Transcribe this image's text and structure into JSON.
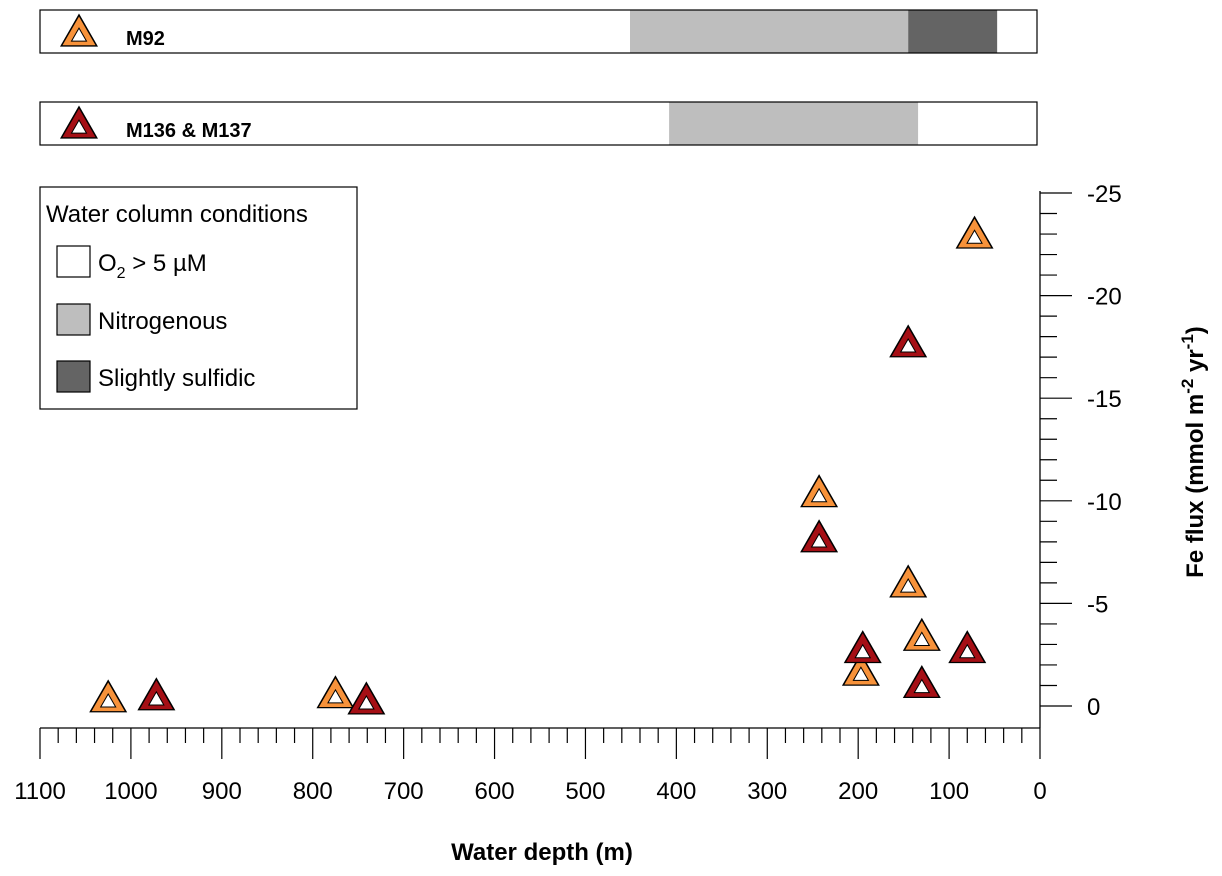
{
  "cruise_bars": [
    {
      "label": "M92",
      "marker_color": "#F7923A",
      "segments": [
        {
          "condition": "O2 > 5 µM",
          "from_depth": 1100,
          "to_depth": 451
        },
        {
          "condition": "Nitrogenous",
          "from_depth": 451,
          "to_depth": 145
        },
        {
          "condition": "Slightly sulfidic",
          "from_depth": 145,
          "to_depth": 47
        },
        {
          "condition": "O2 > 5 µM",
          "from_depth": 47,
          "to_depth": 0
        }
      ]
    },
    {
      "label": "M136 & M137",
      "marker_color": "#A50F15",
      "segments": [
        {
          "condition": "O2 > 5 µM",
          "from_depth": 1100,
          "to_depth": 408
        },
        {
          "condition": "Nitrogenous",
          "from_depth": 408,
          "to_depth": 134
        },
        {
          "condition": "O2 > 5 µM",
          "from_depth": 134,
          "to_depth": 0
        }
      ]
    }
  ],
  "legend": {
    "title": "Water column conditions",
    "items": [
      {
        "label_main": "O",
        "label_sub": "2",
        "label_rest": " > 5 µM",
        "color": "#ffffff"
      },
      {
        "label_main": "Nitrogenous",
        "label_sub": "",
        "label_rest": "",
        "color": "#BEBEBE"
      },
      {
        "label_main": "Slightly sulfidic",
        "label_sub": "",
        "label_rest": "",
        "color": "#646464"
      }
    ]
  },
  "chart_data": {
    "type": "scatter",
    "xlabel": "Water depth (m)",
    "ylabel_parts": [
      "Fe flux (mmol m",
      "-2",
      " yr",
      "-1",
      ")"
    ],
    "xlim": [
      1100,
      0
    ],
    "ylim": [
      0,
      -25
    ],
    "x_ticks": [
      1100,
      1000,
      900,
      800,
      700,
      600,
      500,
      400,
      300,
      200,
      100,
      0
    ],
    "y_ticks": [
      0,
      -5,
      -10,
      -15,
      -20,
      -25
    ],
    "x_minor_step": 20,
    "y_minor_step": 1,
    "series": [
      {
        "name": "M92",
        "marker": "triangle",
        "fill": "#F7923A",
        "x": [
          1025,
          775,
          243,
          197,
          145,
          130,
          72
        ],
        "y": [
          -0.3,
          -0.5,
          -10.3,
          -1.6,
          -5.9,
          -3.3,
          -22.9
        ]
      },
      {
        "name": "M136 & M137",
        "marker": "triangle",
        "fill": "#A50F15",
        "x": [
          972,
          741,
          243,
          195,
          145,
          130,
          80
        ],
        "y": [
          -0.4,
          -0.2,
          -8.1,
          -2.7,
          -17.6,
          -1.0,
          -2.7
        ]
      }
    ]
  }
}
